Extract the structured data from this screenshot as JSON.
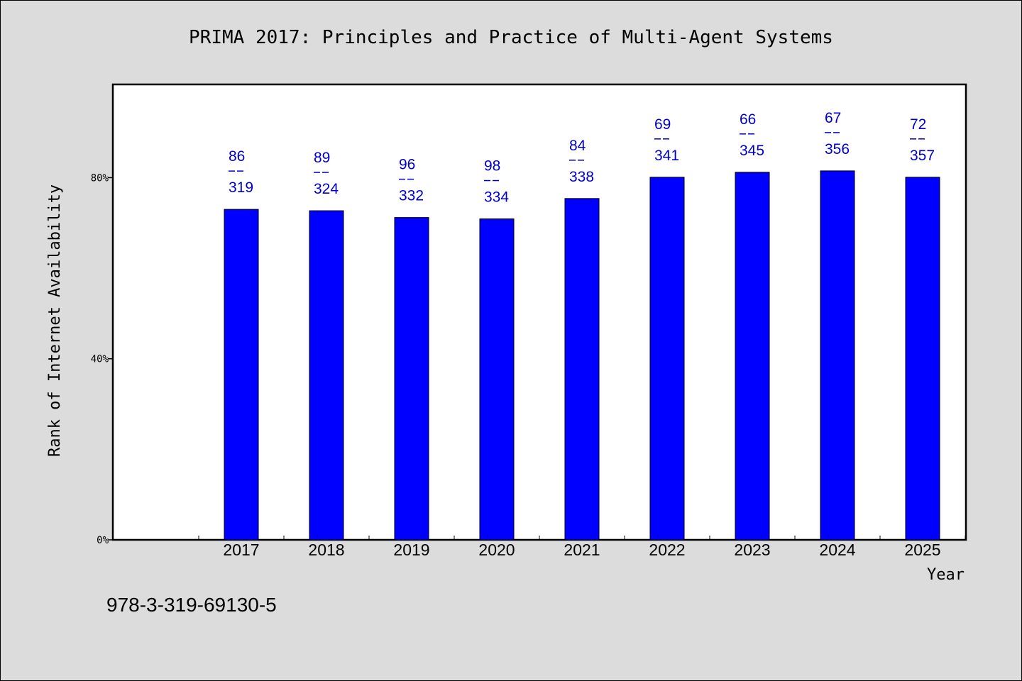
{
  "footer": {
    "isbn": "978-3-319-69130-5"
  },
  "colors": {
    "bar": "#0000ff",
    "label": "#0000cc",
    "plot_background": "#ffffff",
    "page_background": "#dcdcdc"
  },
  "chart_data": {
    "type": "bar",
    "title": "PRIMA 2017: Principles and Practice of Multi-Agent Systems",
    "xlabel": "Year",
    "ylabel": "Rank of Internet Availability",
    "categories": [
      "2017",
      "2018",
      "2019",
      "2020",
      "2021",
      "2022",
      "2023",
      "2024",
      "2025"
    ],
    "values": [
      73,
      72.7,
      71.2,
      70.9,
      75.4,
      80.1,
      81.2,
      81.5,
      80.1
    ],
    "label_top": [
      "86",
      "89",
      "96",
      "98",
      "84",
      "69",
      "66",
      "67",
      "72"
    ],
    "label_bottom": [
      "319",
      "324",
      "332",
      "334",
      "338",
      "341",
      "345",
      "356",
      "357"
    ],
    "yticks": [
      0,
      40,
      80
    ],
    "ytick_labels": [
      "0%",
      "40%",
      "80%"
    ],
    "ylim": [
      0,
      100.6
    ],
    "grid": false,
    "legend": "none"
  }
}
